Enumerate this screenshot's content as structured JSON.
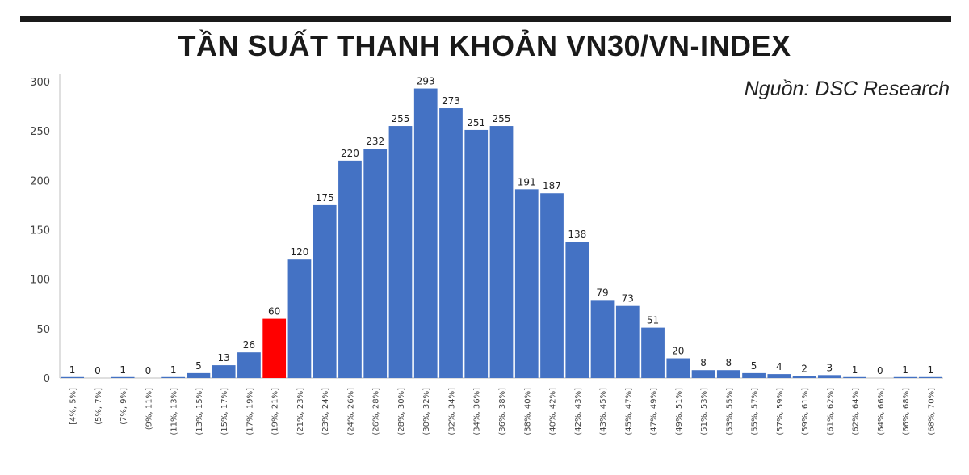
{
  "chart_data": {
    "type": "bar",
    "title": "TẦN SUẤT THANH KHOẢN VN30/VN-INDEX",
    "source": "Nguồn: DSC Research",
    "ylim": [
      0,
      300
    ],
    "yticks": [
      0,
      50,
      100,
      150,
      200,
      250,
      300
    ],
    "grid": false,
    "categories": [
      "[4%, 5%]",
      "(5%, 7%]",
      "(7%, 9%]",
      "(9%, 11%]",
      "(11%, 13%]",
      "(13%, 15%]",
      "(15%, 17%]",
      "(17%, 19%]",
      "(19%, 21%]",
      "(21%, 23%]",
      "(23%, 24%]",
      "(24%, 26%]",
      "(26%, 28%]",
      "(28%, 30%]",
      "(30%, 32%]",
      "(32%, 34%]",
      "(34%, 36%]",
      "(36%, 38%]",
      "(38%, 40%]",
      "(40%, 42%]",
      "(42%, 43%]",
      "(43%, 45%]",
      "(45%, 47%]",
      "(47%, 49%]",
      "(49%, 51%]",
      "(51%, 53%]",
      "(53%, 55%]",
      "(55%, 57%]",
      "(57%, 59%]",
      "(59%, 61%]",
      "(61%, 62%]",
      "(62%, 64%]",
      "(64%, 66%]",
      "(66%, 68%]",
      "(68%, 70%]"
    ],
    "values": [
      1,
      0,
      1,
      0,
      1,
      5,
      13,
      26,
      60,
      120,
      175,
      220,
      232,
      255,
      293,
      273,
      251,
      255,
      191,
      187,
      138,
      79,
      73,
      51,
      20,
      8,
      8,
      5,
      4,
      2,
      3,
      1,
      0,
      1,
      1
    ],
    "highlight_index": 8,
    "colors": {
      "bar": "#4472c4",
      "highlight": "#ff0000",
      "title_bar": "#1a1a1a"
    }
  }
}
